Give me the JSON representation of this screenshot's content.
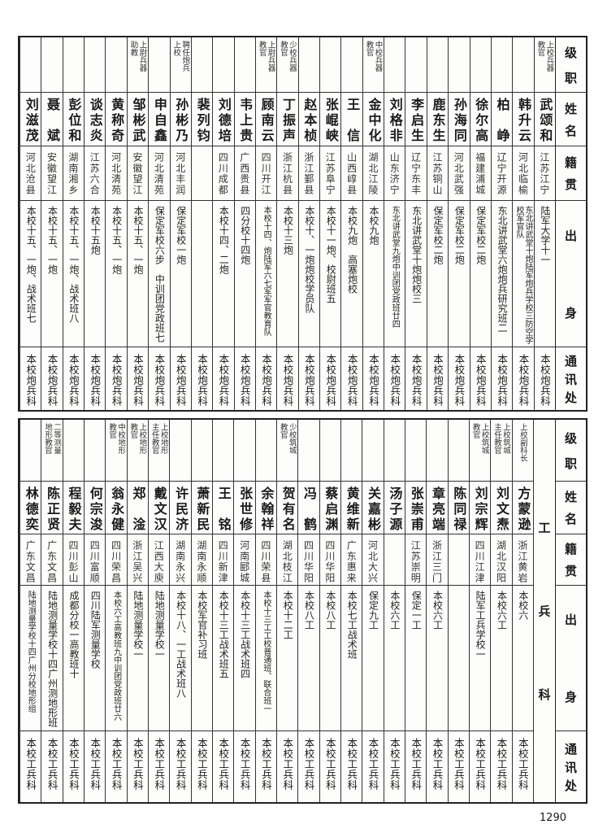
{
  "header": [
    "级职",
    "姓名",
    "籍贯",
    "出身",
    "通讯处"
  ],
  "top_table": {
    "people": [
      {
        "rank": "上校兵器\n教官",
        "name": "武颂和",
        "origin": "江苏江宁",
        "education": "陆军大学十一",
        "address": "本校炮兵科"
      },
      {
        "rank": "",
        "name": "韩升云",
        "origin": "河北临榆",
        "education": "东北讲武堂十炮陆军炮兵学校三防空学校军官队",
        "address": "本校炮兵科"
      },
      {
        "rank": "",
        "name": "柏峥",
        "origin": "辽宁开源",
        "education": "东北讲武堂六炮炮兵研究班二",
        "address": "本校炮兵科"
      },
      {
        "rank": "",
        "name": "徐尔高",
        "origin": "福建浦城",
        "education": "保定军校二炮",
        "address": "本校炮兵科"
      },
      {
        "rank": "",
        "name": "孙海同",
        "origin": "河北武强",
        "education": "保定军校二炮",
        "address": "本校炮兵科"
      },
      {
        "rank": "",
        "name": "鹿东生",
        "origin": "江苏铜山",
        "education": "保定军校二炮",
        "address": "本校炮兵科"
      },
      {
        "rank": "",
        "name": "李启生",
        "origin": "辽宁东丰",
        "education": "东北讲武堂十炮炮校三",
        "address": "本校炮兵科"
      },
      {
        "rank": "",
        "name": "刘格非",
        "origin": "山东济宁",
        "education": "东北讲武堂九炮中训团党政班廿四",
        "address": "本校炮兵科"
      },
      {
        "rank": "中校兵器\n教官",
        "name": "金中化",
        "origin": "湖北江陵",
        "education": "本校九炮",
        "address": "本校炮兵科"
      },
      {
        "rank": "",
        "name": "王信",
        "origin": "山西崞县",
        "education": "本校九炮　高塞炮校",
        "address": "本校炮兵科"
      },
      {
        "rank": "",
        "name": "张崐峡",
        "origin": "江苏阜宁",
        "education": "本校十一炮、校尉班五",
        "address": "本校炮兵科"
      },
      {
        "rank": "",
        "name": "赵本桢",
        "origin": "浙江鄞县",
        "education": "本校十、一炮炮校学员队",
        "address": "本校炮兵科"
      },
      {
        "rank": "少校兵器\n教官",
        "name": "丁振声",
        "origin": "浙江杭县",
        "education": "本校十三炮",
        "address": "本校炮兵科"
      },
      {
        "rank": "上尉兵器\n教官",
        "name": "顾南云",
        "origin": "四川开江",
        "education": "本校十四、炮陆军六七军军官教育队",
        "address": "本校炮兵科"
      },
      {
        "rank": "",
        "name": "韦上贵",
        "origin": "广西贵县",
        "education": "四分校十四炮",
        "address": "本校炮兵科"
      },
      {
        "rank": "",
        "name": "刘德培",
        "origin": "四川成都",
        "education": "本校十四、二炮",
        "address": "本校炮兵科"
      },
      {
        "rank": "",
        "name": "裴列钧",
        "origin": "",
        "education": "",
        "address": "本校炮兵科"
      },
      {
        "rank": "聘任炮兵\n上校",
        "name": "孙彬乃",
        "origin": "河北丰润",
        "education": "保定军校一炮",
        "address": "本校炮兵科"
      },
      {
        "rank": "",
        "name": "申自鑫",
        "origin": "河北清苑",
        "education": "保定军校六步　中训团党政班七",
        "address": "本校炮兵科"
      },
      {
        "rank": "上尉兵器\n助教",
        "name": "邹彬武",
        "origin": "安徽望江",
        "education": "本校十五、一炮",
        "address": "本校炮兵科"
      },
      {
        "rank": "",
        "name": "黄称奇",
        "origin": "河北清苑",
        "education": "本校十五、一炮",
        "address": "本校炮兵科"
      },
      {
        "rank": "",
        "name": "谈志炎",
        "origin": "江苏六合",
        "education": "本校十五炮",
        "address": "本校炮兵科"
      },
      {
        "rank": "",
        "name": "彭位和",
        "origin": "湖南湘乡",
        "education": "本校十五、一炮、战术班八",
        "address": "本校炮兵科"
      },
      {
        "rank": "",
        "name": "聂斌",
        "origin": "安徽望江",
        "education": "本校十五、一炮",
        "address": "本校炮兵科"
      },
      {
        "rank": "",
        "name": "刘滋茂",
        "origin": "河北沧县",
        "education": "本校十五、一炮、战术班七",
        "address": "本校炮兵科"
      }
    ]
  },
  "bottom_table": {
    "department": "工兵科",
    "people": [
      {
        "rank": "上校副科长",
        "name": "方蒙逊",
        "origin": "浙江黄岩",
        "education": "本校六",
        "address": "本校工兵科"
      },
      {
        "rank": "上校筑城\n主任教官",
        "name": "刘文焘",
        "origin": "湖北汉阳",
        "education": "本校六工",
        "address": "本校工兵科"
      },
      {
        "rank": "上校筑城\n教官",
        "name": "刘宗辉",
        "origin": "四川江津",
        "education": "陆军工兵学校一",
        "address": "本校工兵科"
      },
      {
        "rank": "",
        "name": "陈同禄",
        "origin": "",
        "education": "",
        "address": "本校工兵科"
      },
      {
        "rank": "",
        "name": "章亮端",
        "origin": "浙江三门",
        "education": "本校六工",
        "address": "本校工兵科"
      },
      {
        "rank": "",
        "name": "张崇甫",
        "origin": "江苏崇明",
        "education": "保定一工",
        "address": "本校工兵科"
      },
      {
        "rank": "",
        "name": "汤子源",
        "origin": "",
        "education": "本校六工",
        "address": "本校工兵科"
      },
      {
        "rank": "",
        "name": "关嘉彬",
        "origin": "河北大兴",
        "education": "保定九工",
        "address": "本校工兵科"
      },
      {
        "rank": "",
        "name": "黄维新",
        "origin": "广东惠来",
        "education": "本校七工战术班",
        "address": "本校工兵科"
      },
      {
        "rank": "",
        "name": "蔡启渊",
        "origin": "四川华阳",
        "education": "本校八工",
        "address": "本校工兵科"
      },
      {
        "rank": "",
        "name": "冯鹤",
        "origin": "四川华阳",
        "education": "本校八工",
        "address": "本校工兵科"
      },
      {
        "rank": "少校筑城\n教官",
        "name": "贺有名",
        "origin": "湖北枝江",
        "education": "本校十二工",
        "address": "本校工兵科"
      },
      {
        "rank": "",
        "name": "余翰祥",
        "origin": "四川荣县",
        "education": "本校十三工工校普通班、联合班一",
        "address": "本校工兵科"
      },
      {
        "rank": "",
        "name": "张世修",
        "origin": "河南郾城",
        "education": "本校十三工战术班四",
        "address": "本校工兵科"
      },
      {
        "rank": "",
        "name": "王铭",
        "origin": "四川新津",
        "education": "本校十三工战术班五",
        "address": "本校工兵科"
      },
      {
        "rank": "",
        "name": "萧新民",
        "origin": "湖南永顺",
        "education": "本校军官补习班",
        "address": "本校工兵科"
      },
      {
        "rank": "",
        "name": "许民济",
        "origin": "湖南永兴",
        "education": "本校十八、一工战术班八",
        "address": "本校工兵科"
      },
      {
        "rank": "上校地形\n主任教官",
        "name": "戴文汉",
        "origin": "江西大庾",
        "education": "陆地测量学校一",
        "address": "本校工兵科"
      },
      {
        "rank": "上校地形\n教官",
        "name": "郑淦",
        "origin": "浙江吴兴",
        "education": "陆地测量学校一",
        "address": "本校工兵科"
      },
      {
        "rank": "中校地形\n教官",
        "name": "翁永健",
        "origin": "四川荣昌",
        "education": "本校六工高教班九中训团党政班廿六",
        "address": "本校工兵科"
      },
      {
        "rank": "",
        "name": "何宗浚",
        "origin": "四川富顺",
        "education": "四川陆军测量学校",
        "address": "本校工兵科"
      },
      {
        "rank": "",
        "name": "程毅夫",
        "origin": "四川彭山",
        "education": "成都分校一高教班十",
        "address": "本校工兵科"
      },
      {
        "rank": "二等测量\n地形教官",
        "name": "陈正贤",
        "origin": "广东文昌",
        "education": "陆地测量学校十四广州测地形班",
        "address": "本校工兵科"
      },
      {
        "rank": "",
        "name": "林德奕",
        "origin": "广东文昌",
        "education": "陆地测量学校十四广州分校地形组",
        "address": "本校工兵科"
      }
    ]
  },
  "page_number": "1290"
}
